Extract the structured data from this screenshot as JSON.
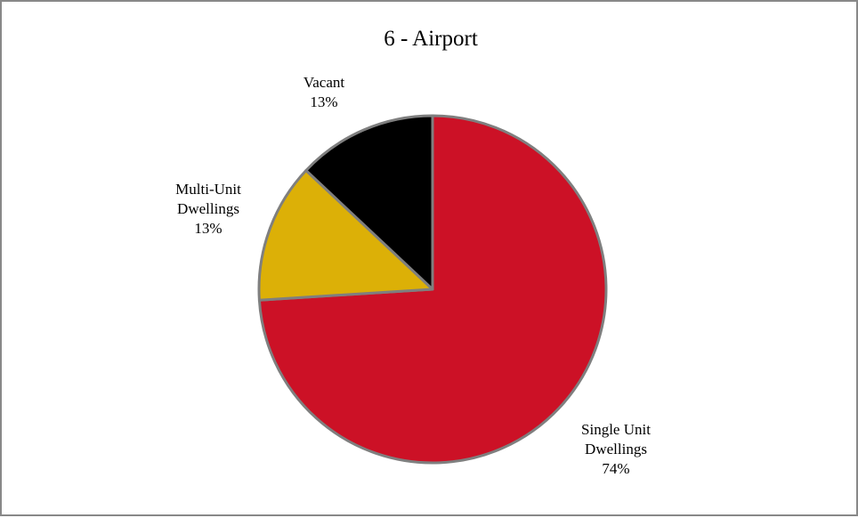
{
  "chart_data": {
    "type": "pie",
    "title": "6 - Airport",
    "categories": [
      "Single Unit Dwellings",
      "Multi-Unit Dwellings",
      "Vacant"
    ],
    "values": [
      74,
      13,
      13
    ],
    "value_labels": [
      "74%",
      "13%",
      "13%"
    ],
    "colors": [
      "#cc1126",
      "#dcb007",
      "#000000"
    ]
  }
}
